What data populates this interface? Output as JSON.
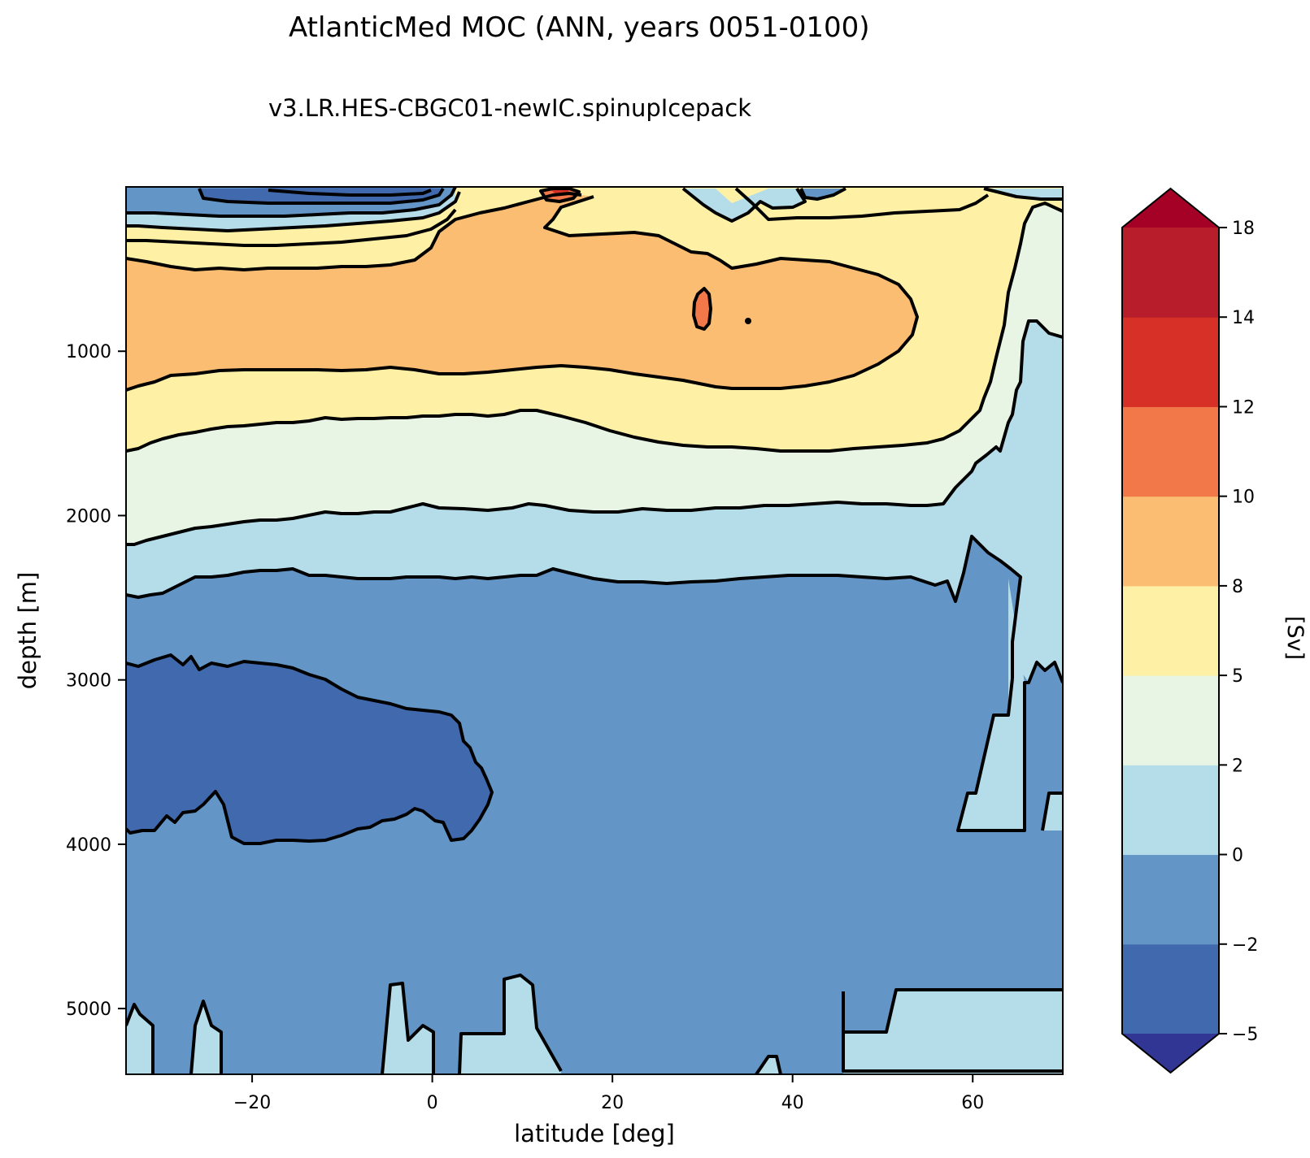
{
  "chart_data": {
    "type": "contour",
    "title": "AtlanticMed MOC (ANN, years 0051-0100)",
    "subtitle": "v3.LR.HES-CBGC01-newIC.spinupIcepack",
    "xlabel": "latitude [deg]",
    "ylabel": "depth [m]",
    "xlim": [
      -34,
      70
    ],
    "ylim": [
      5400,
      0
    ],
    "y_inverted": true,
    "xticks": [
      -20,
      0,
      20,
      40,
      60
    ],
    "xtick_labels": [
      "−20",
      "0",
      "20",
      "40",
      "60"
    ],
    "yticks": [
      1000,
      2000,
      3000,
      4000,
      5000
    ],
    "ytick_labels": [
      "1000",
      "2000",
      "3000",
      "4000",
      "5000"
    ],
    "colorbar": {
      "label": "[Sv]",
      "levels": [
        -5,
        -2,
        0,
        2,
        5,
        8,
        10,
        12,
        14,
        18
      ],
      "level_labels": [
        "−5",
        "−2",
        "0",
        "2",
        "5",
        "8",
        "10",
        "12",
        "14",
        "18"
      ],
      "colors": [
        "#4169ad",
        "#6396c6",
        "#b4dde9",
        "#e8f5e4",
        "#fef1a6",
        "#fbbd72",
        "#f37849",
        "#d73027",
        "#b81d2c"
      ],
      "under_color": "#313695",
      "over_color": "#a50026",
      "extend": "both"
    },
    "features": [
      {
        "name": "upper cell max",
        "range_sv": [
          8,
          10
        ],
        "lat_range": [
          -34,
          59
        ],
        "depth_range": [
          500,
          1300
        ]
      },
      {
        "name": "local max",
        "range_sv": [
          10,
          12
        ],
        "lat": 30,
        "depth": 800
      },
      {
        "name": "surface peak",
        "range_sv": [
          10,
          12
        ],
        "lat": 14,
        "depth": 30
      },
      {
        "name": "surface negative cell",
        "range_sv": [
          -5,
          -2
        ],
        "lat_range": [
          -30,
          0
        ],
        "depth_range": [
          0,
          150
        ]
      },
      {
        "name": "deep negative cell",
        "range_sv": [
          -5,
          -2
        ],
        "lat_range": [
          -34,
          6
        ],
        "depth_range": [
          2900,
          4000
        ]
      },
      {
        "name": "abyssal weak positive",
        "range_sv": [
          0,
          2
        ],
        "lat_range": [
          45,
          70
        ],
        "depth_range": [
          4900,
          5400
        ]
      }
    ]
  }
}
